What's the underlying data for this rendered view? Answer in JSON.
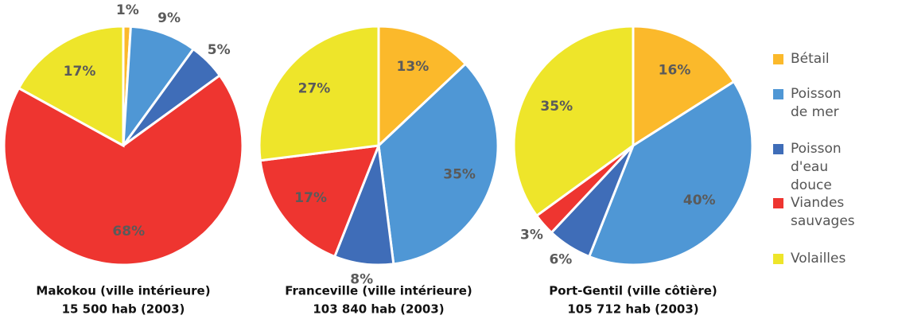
{
  "chart_data": [
    {
      "type": "pie",
      "title": "Makokou (ville intérieure)",
      "subtitle": "15 500 hab (2003)",
      "categories": [
        "Bétail",
        "Poisson de mer",
        "Poisson d'eau douce",
        "Viandes sauvages",
        "Volailles"
      ],
      "values": [
        1,
        9,
        5,
        68,
        17
      ],
      "value_labels": [
        "1%",
        "9%",
        "5%",
        "68%",
        "17%"
      ],
      "colors": [
        "#fbb92b",
        "#4f97d5",
        "#3f6db8",
        "#ee3530",
        "#eee52a"
      ]
    },
    {
      "type": "pie",
      "title": "Franceville (ville intérieure)",
      "subtitle": "103 840 hab (2003)",
      "categories": [
        "Bétail",
        "Poisson de mer",
        "Poisson d'eau douce",
        "Viandes sauvages",
        "Volailles"
      ],
      "values": [
        13,
        35,
        8,
        17,
        27
      ],
      "value_labels": [
        "13%",
        "35%",
        "8%",
        "17%",
        "27%"
      ],
      "colors": [
        "#fbb92b",
        "#4f97d5",
        "#3f6db8",
        "#ee3530",
        "#eee52a"
      ]
    },
    {
      "type": "pie",
      "title": "Port-Gentil (ville côtière)",
      "subtitle": "105 712 hab (2003)",
      "categories": [
        "Bétail",
        "Poisson de mer",
        "Poisson d'eau douce",
        "Viandes sauvages",
        "Volailles"
      ],
      "values": [
        16,
        40,
        6,
        3,
        35
      ],
      "value_labels": [
        "16%",
        "40%",
        "6%",
        "3%",
        "35%"
      ],
      "colors": [
        "#fbb92b",
        "#4f97d5",
        "#3f6db8",
        "#ee3530",
        "#eee52a"
      ]
    }
  ]
}
